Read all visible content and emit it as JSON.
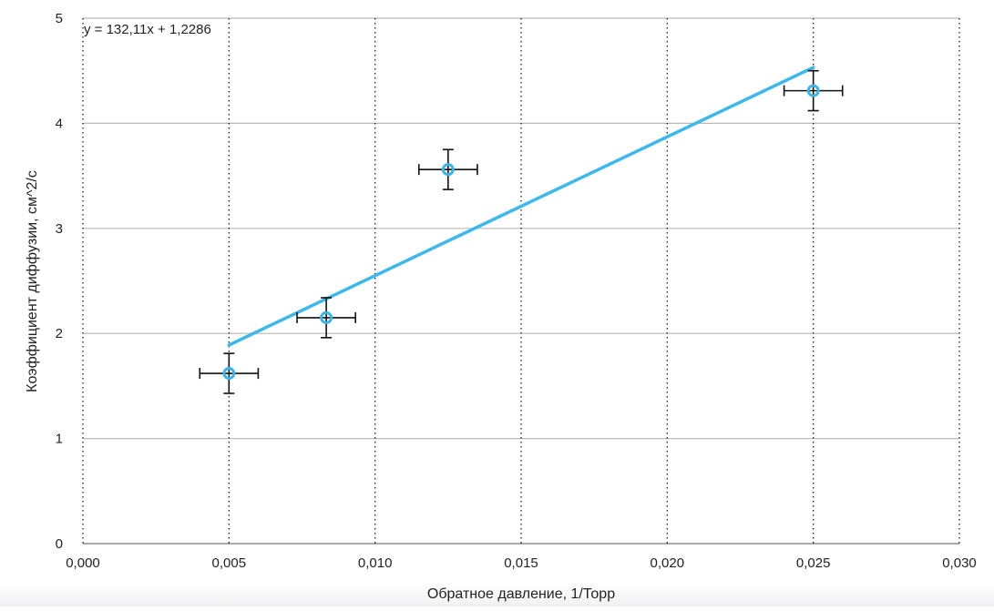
{
  "chart_data": {
    "type": "scatter",
    "title": "",
    "xlabel": "Обратное давление, 1/Торр",
    "ylabel": "Коэффициент диффузии, см^2/с",
    "xlim": [
      0,
      0.03
    ],
    "ylim": [
      0,
      5
    ],
    "x_ticks": [
      "0,000",
      "0,005",
      "0,010",
      "0,015",
      "0,020",
      "0,025",
      "0,030"
    ],
    "y_ticks": [
      "0",
      "1",
      "2",
      "3",
      "4",
      "5"
    ],
    "grid": {
      "x": "dotted",
      "y": "solid"
    },
    "legend": "none",
    "points": [
      {
        "x": 0.005,
        "y": 1.62,
        "xerr": 0.001,
        "yerr": 0.19
      },
      {
        "x": 0.00833,
        "y": 2.15,
        "xerr": 0.001,
        "yerr": 0.19
      },
      {
        "x": 0.0125,
        "y": 3.56,
        "xerr": 0.001,
        "yerr": 0.19
      },
      {
        "x": 0.025,
        "y": 4.31,
        "xerr": 0.001,
        "yerr": 0.19
      }
    ],
    "trendline": {
      "equation": "y = 132,11x + 1,2286",
      "slope": 132.11,
      "intercept": 1.2286,
      "x_start": 0.005,
      "x_end": 0.025
    },
    "colors": {
      "marker": "#39b6e8",
      "trendline": "#3bb8ec",
      "error_bar": "#111111",
      "grid": "#b9b9b9",
      "axis_text": "#222222"
    }
  }
}
